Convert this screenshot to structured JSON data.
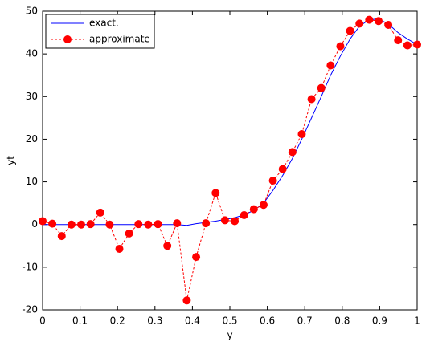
{
  "chart_data": {
    "type": "line",
    "xlabel": "y",
    "ylabel": "yt",
    "x": [
      0,
      0.026,
      0.051,
      0.077,
      0.103,
      0.128,
      0.154,
      0.179,
      0.205,
      0.231,
      0.256,
      0.282,
      0.308,
      0.333,
      0.359,
      0.385,
      0.41,
      0.436,
      0.462,
      0.487,
      0.513,
      0.538,
      0.564,
      0.59,
      0.615,
      0.641,
      0.667,
      0.692,
      0.718,
      0.744,
      0.769,
      0.795,
      0.821,
      0.846,
      0.872,
      0.897,
      0.923,
      0.949,
      0.974,
      1
    ],
    "series": [
      {
        "name": "exact.",
        "color": "#0000ff",
        "linestyle": "solid",
        "marker": "none",
        "values": [
          0,
          0,
          0,
          0,
          0,
          0,
          0,
          0,
          0,
          0,
          0,
          0,
          0,
          0,
          0,
          -0.2,
          0.2,
          0.5,
          0.8,
          1.2,
          1.6,
          2.3,
          3.3,
          5,
          8,
          11.5,
          15.5,
          20,
          25,
          30,
          35,
          39.5,
          43.5,
          46.5,
          48,
          48.2,
          47,
          45,
          43.5,
          42.2
        ]
      },
      {
        "name": "approximate",
        "color": "#ff0000",
        "linestyle": "dashed",
        "marker": "circle",
        "values": [
          0.8,
          0.2,
          -2.7,
          0,
          0,
          0.1,
          2.8,
          0,
          -5.7,
          -2.1,
          0.1,
          0,
          0.1,
          -5,
          0.3,
          -17.8,
          -7.6,
          0.3,
          7.4,
          1,
          0.8,
          2.2,
          3.6,
          4.6,
          10.3,
          13,
          17,
          21.2,
          29.4,
          32,
          37.3,
          41.8,
          45.4,
          47.1,
          48,
          47.7,
          46.8,
          43.2,
          42,
          42.2
        ]
      }
    ],
    "xlim": [
      0,
      1
    ],
    "xticks": [
      0,
      0.1,
      0.2,
      0.3,
      0.4,
      0.5,
      0.6,
      0.7,
      0.8,
      0.9,
      1
    ],
    "ylim": [
      -20,
      50
    ],
    "yticks": [
      -20,
      -10,
      0,
      10,
      20,
      30,
      40,
      50
    ],
    "grid": false,
    "legend": "upper-left"
  }
}
